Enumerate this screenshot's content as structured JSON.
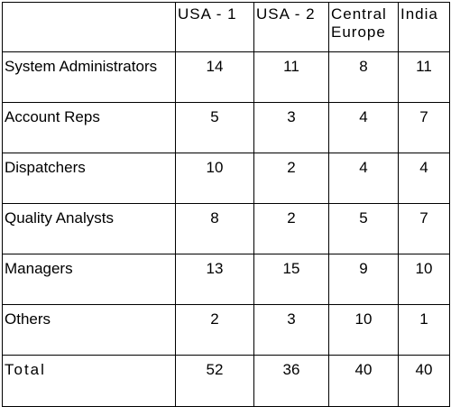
{
  "table": {
    "columns": [
      "",
      "USA - 1",
      "USA - 2",
      "Central Europe",
      "India"
    ],
    "rows": [
      {
        "label": "System Administrators",
        "values": [
          "14",
          "11",
          "8",
          "11"
        ]
      },
      {
        "label": "Account Reps",
        "values": [
          "5",
          "3",
          "4",
          "7"
        ]
      },
      {
        "label": "Dispatchers",
        "values": [
          "10",
          "2",
          "4",
          "4"
        ]
      },
      {
        "label": "Quality Analysts",
        "values": [
          "8",
          "2",
          "5",
          "7"
        ]
      },
      {
        "label": "Managers",
        "values": [
          "13",
          "15",
          "9",
          "10"
        ]
      },
      {
        "label": "Others",
        "values": [
          "2",
          "3",
          "10",
          "1"
        ]
      }
    ],
    "total": {
      "label": "Total",
      "values": [
        "52",
        "36",
        "40",
        "40"
      ]
    }
  }
}
